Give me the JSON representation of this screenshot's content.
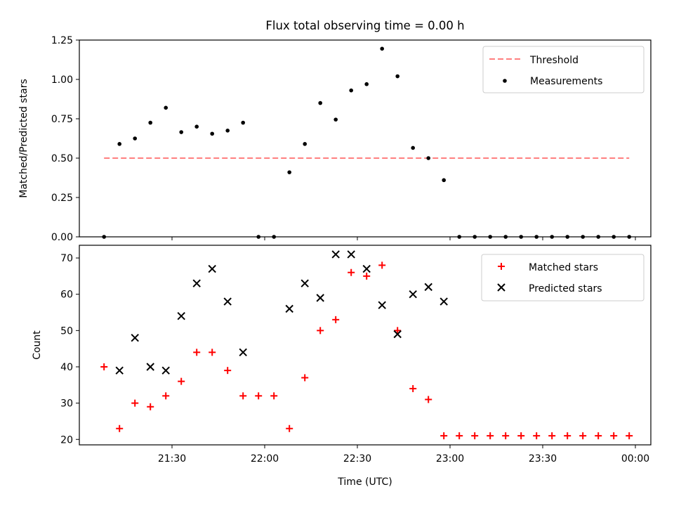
{
  "title": "Flux total observing time = 0.00 h",
  "chart_data": [
    {
      "type": "scatter",
      "ylabel": "Matched/Predicted stars",
      "ylim": [
        0,
        1.25
      ],
      "yticks": [
        "0.00",
        "0.25",
        "0.50",
        "0.75",
        "1.00",
        "1.25"
      ],
      "xlim": [
        "21:00",
        "00:05"
      ],
      "legend_position": "top-right",
      "threshold": {
        "name": "Threshold",
        "value": 0.5,
        "x_range": [
          "21:08",
          "23:58"
        ],
        "color": "#ff7f7f"
      },
      "series": [
        {
          "name": "Measurements",
          "color": "#000000",
          "x": [
            "21:08",
            "21:13",
            "21:18",
            "21:23",
            "21:28",
            "21:33",
            "21:38",
            "21:43",
            "21:48",
            "21:53",
            "21:58",
            "22:03",
            "22:08",
            "22:13",
            "22:18",
            "22:23",
            "22:28",
            "22:33",
            "22:38",
            "22:43",
            "22:48",
            "22:53",
            "22:58",
            "23:03",
            "23:08",
            "23:13",
            "23:18",
            "23:23",
            "23:28",
            "23:33",
            "23:38",
            "23:43",
            "23:48",
            "23:53",
            "23:58"
          ],
          "y": [
            0.0,
            0.59,
            0.625,
            0.725,
            0.82,
            0.665,
            0.7,
            0.655,
            0.675,
            0.725,
            0.0,
            0.0,
            0.41,
            0.59,
            0.85,
            0.745,
            0.93,
            0.97,
            1.195,
            1.02,
            0.565,
            0.5,
            0.36,
            0.0,
            0.0,
            0.0,
            0.0,
            0.0,
            0.0,
            0.0,
            0.0,
            0.0,
            0.0,
            0.0,
            0.0
          ]
        }
      ]
    },
    {
      "type": "scatter",
      "ylabel": "Count",
      "xlabel": "Time (UTC)",
      "ylim": [
        18.5,
        73.5
      ],
      "yticks": [
        "20",
        "30",
        "40",
        "50",
        "60",
        "70"
      ],
      "xlim": [
        "21:00",
        "00:05"
      ],
      "xticks": [
        "21:30",
        "22:00",
        "22:30",
        "23:00",
        "23:30",
        "00:00"
      ],
      "legend_position": "top-right",
      "series": [
        {
          "name": "Matched stars",
          "marker": "+",
          "color": "#ff0000",
          "x": [
            "21:08",
            "21:13",
            "21:18",
            "21:23",
            "21:28",
            "21:33",
            "21:38",
            "21:43",
            "21:48",
            "21:53",
            "21:58",
            "22:03",
            "22:08",
            "22:13",
            "22:18",
            "22:23",
            "22:28",
            "22:33",
            "22:38",
            "22:43",
            "22:48",
            "22:53",
            "22:58",
            "23:03",
            "23:08",
            "23:13",
            "23:18",
            "23:23",
            "23:28",
            "23:33",
            "23:38",
            "23:43",
            "23:48",
            "23:53",
            "23:58"
          ],
          "y": [
            40,
            23,
            30,
            29,
            32,
            36,
            44,
            44,
            39,
            32,
            32,
            32,
            23,
            37,
            50,
            53,
            66,
            65,
            68,
            50,
            34,
            31,
            21,
            21,
            21,
            21,
            21,
            21,
            21,
            21,
            21,
            21,
            21,
            21,
            21
          ]
        },
        {
          "name": "Predicted stars",
          "marker": "x",
          "color": "#000000",
          "x": [
            "21:13",
            "21:18",
            "21:23",
            "21:28",
            "21:33",
            "21:38",
            "21:43",
            "21:48",
            "21:53",
            "22:08",
            "22:13",
            "22:18",
            "22:23",
            "22:28",
            "22:33",
            "22:38",
            "22:43",
            "22:48",
            "22:53",
            "22:58"
          ],
          "y": [
            39,
            48,
            40,
            39,
            54,
            63,
            67,
            58,
            44,
            56,
            63,
            59,
            71,
            71,
            67,
            57,
            49,
            60,
            62,
            58
          ]
        }
      ]
    }
  ]
}
